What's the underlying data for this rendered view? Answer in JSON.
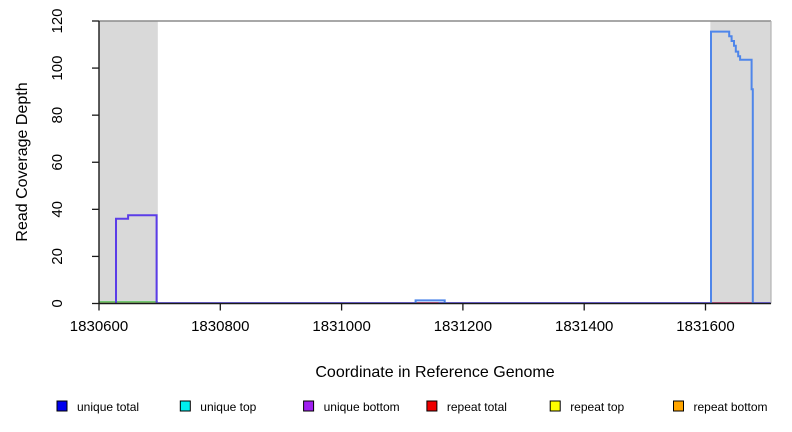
{
  "chart_data": {
    "type": "line",
    "title": "",
    "xlabel": "Coordinate in Reference Genome",
    "ylabel": "Read Coverage Depth",
    "xlim": [
      1830600,
      1831708
    ],
    "ylim": [
      0,
      120
    ],
    "x_ticks": [
      "1830600",
      "1830800",
      "1831000",
      "1831200",
      "1831400",
      "1831600"
    ],
    "x_tick_values": [
      1830600,
      1830800,
      1831000,
      1831200,
      1831400,
      1831600
    ],
    "y_ticks": [
      "0",
      "20",
      "40",
      "60",
      "80",
      "100",
      "120"
    ],
    "y_tick_values": [
      0,
      20,
      40,
      60,
      80,
      100,
      120
    ],
    "grid": false,
    "background_regions": [
      {
        "name": "left-shaded-region",
        "x0": 1830600,
        "x1": 1830697,
        "color": "#d9d9d9"
      },
      {
        "name": "right-shaded-region",
        "x0": 1831608,
        "x1": 1831708,
        "color": "#d9d9d9"
      }
    ],
    "series": [
      {
        "name": "unique-bottom-baseline",
        "color": "#7b6ef0",
        "width": 1.6,
        "points": [
          [
            1830600,
            0.3
          ],
          [
            1831708,
            0.3
          ]
        ]
      },
      {
        "name": "repeat-total-under-bump",
        "color": "#e8485a",
        "width": 1.6,
        "points": [
          [
            1831123,
            0.2
          ],
          [
            1831160,
            0.2
          ]
        ]
      },
      {
        "name": "repeat-total-under-right-peak",
        "color": "#e8485a",
        "width": 1.6,
        "points": [
          [
            1831609,
            0.2
          ],
          [
            1831676,
            0.2
          ]
        ]
      },
      {
        "name": "repeat-bottom-left-region",
        "color": "#f2c18a",
        "width": 1.2,
        "points": [
          [
            1830600,
            0.15
          ],
          [
            1830697,
            0.15
          ]
        ]
      },
      {
        "name": "green-left-region-line",
        "color": "#62c462",
        "width": 1.5,
        "points": [
          [
            1830600,
            0.7
          ],
          [
            1830697,
            0.7
          ]
        ]
      },
      {
        "name": "unique-coverage-left-peak",
        "color": "#5b3de8",
        "width": 2,
        "points": [
          [
            1830628,
            0
          ],
          [
            1830628,
            36
          ],
          [
            1830648,
            36
          ],
          [
            1830648,
            37.5
          ],
          [
            1830695,
            37.5
          ],
          [
            1830695,
            0
          ]
        ]
      },
      {
        "name": "unique-coverage-small-bump",
        "color": "#4f86ea",
        "width": 2,
        "points": [
          [
            1831122,
            0
          ],
          [
            1831122,
            1.3
          ],
          [
            1831170,
            1.3
          ],
          [
            1831170,
            0
          ]
        ]
      },
      {
        "name": "unique-coverage-right-peak",
        "color": "#4f86ea",
        "width": 2,
        "points": [
          [
            1831609,
            0
          ],
          [
            1831609,
            115.5
          ],
          [
            1831639,
            115.5
          ],
          [
            1831639,
            113.5
          ],
          [
            1831643,
            113.5
          ],
          [
            1831643,
            111.5
          ],
          [
            1831647,
            111.5
          ],
          [
            1831647,
            109.5
          ],
          [
            1831650,
            109.5
          ],
          [
            1831650,
            107
          ],
          [
            1831654,
            107
          ],
          [
            1831654,
            105
          ],
          [
            1831657,
            105
          ],
          [
            1831657,
            103.5
          ],
          [
            1831676,
            103.5
          ],
          [
            1831676,
            91
          ],
          [
            1831678,
            91
          ],
          [
            1831678,
            0
          ]
        ]
      }
    ],
    "legend": {
      "position": "bottom",
      "entries": [
        {
          "label": "unique total",
          "color": "#0000ee"
        },
        {
          "label": "unique top",
          "color": "#00eeee"
        },
        {
          "label": "unique bottom",
          "color": "#a020f0"
        },
        {
          "label": "repeat total",
          "color": "#ee0000"
        },
        {
          "label": "repeat top",
          "color": "#ffff00"
        },
        {
          "label": "repeat bottom",
          "color": "#ffa500"
        }
      ]
    },
    "frame_colors": {
      "axis": "#1a1a1a",
      "box_top": "#8c8c8c",
      "box_right": "#b3b3b3"
    }
  }
}
